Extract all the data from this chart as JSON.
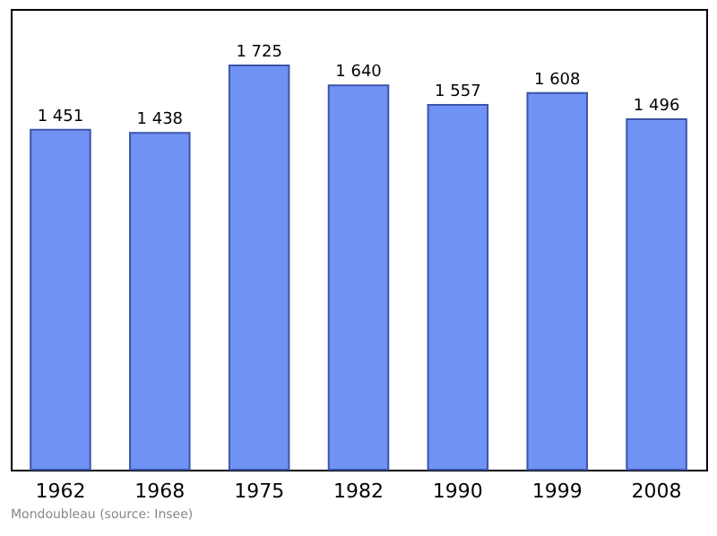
{
  "chart_data": {
    "type": "bar",
    "categories": [
      "1962",
      "1968",
      "1975",
      "1982",
      "1990",
      "1999",
      "2008"
    ],
    "values": [
      1451,
      1438,
      1725,
      1640,
      1557,
      1608,
      1496
    ],
    "value_labels": [
      "1 451",
      "1 438",
      "1 725",
      "1 640",
      "1 557",
      "1 608",
      "1 496"
    ],
    "color": "#7092f5",
    "grid": false,
    "annotations": [
      "Mondoubleau    (source: Insee)"
    ]
  }
}
